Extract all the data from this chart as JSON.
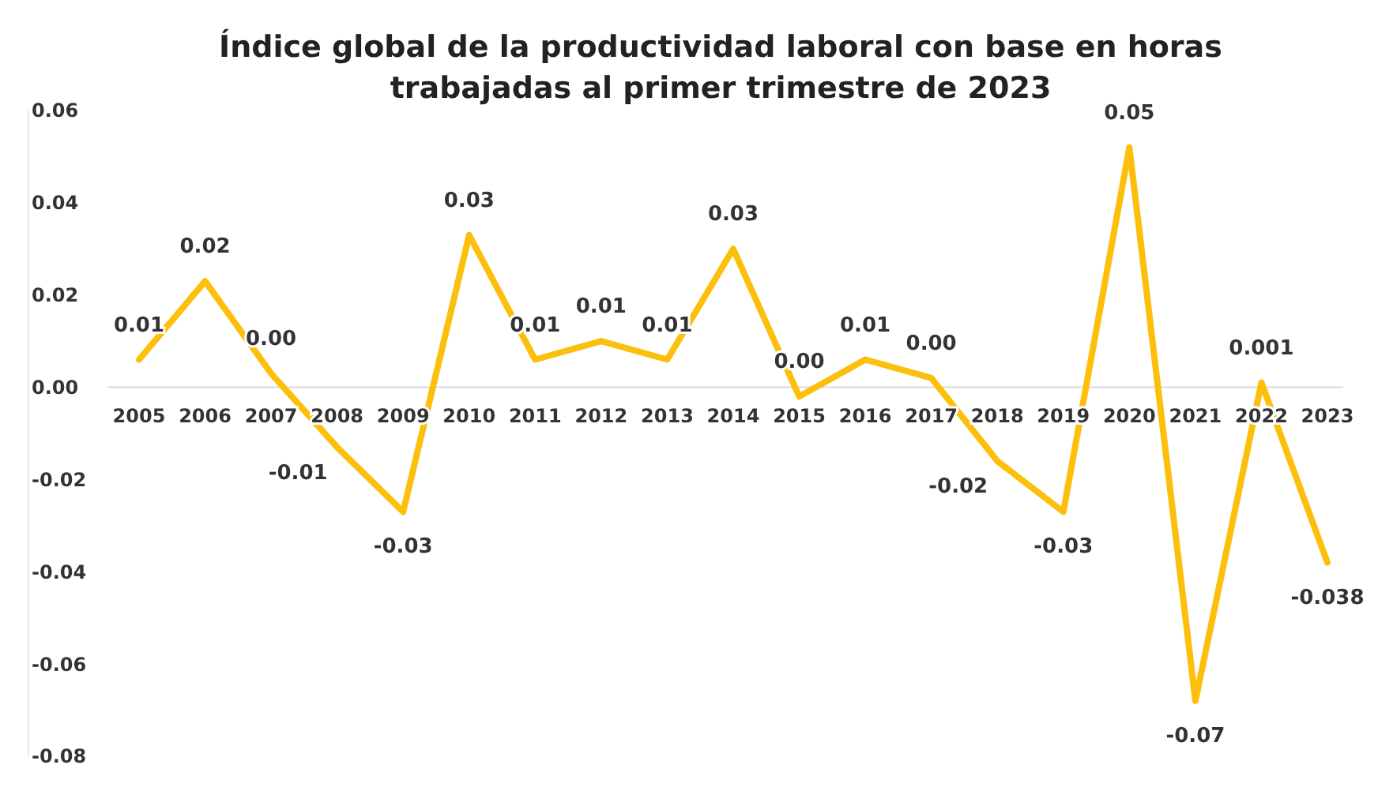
{
  "chart_data": {
    "type": "line",
    "title": "Índice global de la productividad laboral con base en horas\ntrabajadas al primer trimestre de 2023",
    "categories": [
      "2005",
      "2006",
      "2007",
      "2008",
      "2009",
      "2010",
      "2011",
      "2012",
      "2013",
      "2014",
      "2015",
      "2016",
      "2017",
      "2018",
      "2019",
      "2020",
      "2021",
      "2022",
      "2023"
    ],
    "series": [
      {
        "color": "#fbbf0c",
        "values": [
          0.006,
          0.023,
          0.003,
          -0.013,
          -0.027,
          0.033,
          0.006,
          0.01,
          0.006,
          0.03,
          -0.002,
          0.006,
          0.002,
          -0.016,
          -0.027,
          0.052,
          -0.068,
          0.001,
          -0.038
        ],
        "value_labels": [
          "0.01",
          "0.02",
          "0.00",
          "-0.01",
          "-0.03",
          "0.03",
          "0.01",
          "0.01",
          "0.01",
          "0.03",
          "0.00",
          "0.01",
          "0.00",
          "-0.02",
          "-0.03",
          "0.05",
          "-0.07",
          "0.001",
          "-0.038"
        ]
      }
    ],
    "ylim": [
      -0.08,
      0.06
    ],
    "yticks": [
      {
        "value": -0.08,
        "label": "-0.08"
      },
      {
        "value": -0.06,
        "label": "-0.06"
      },
      {
        "value": -0.04,
        "label": "-0.04"
      },
      {
        "value": -0.02,
        "label": "-0.02"
      },
      {
        "value": 0,
        "label": "0.00"
      },
      {
        "value": 0.02,
        "label": "0.02"
      },
      {
        "value": 0.04,
        "label": "0.04"
      },
      {
        "value": 0.06,
        "label": "0.06"
      }
    ],
    "grid": false,
    "marker": "none",
    "line_style": "solid"
  }
}
